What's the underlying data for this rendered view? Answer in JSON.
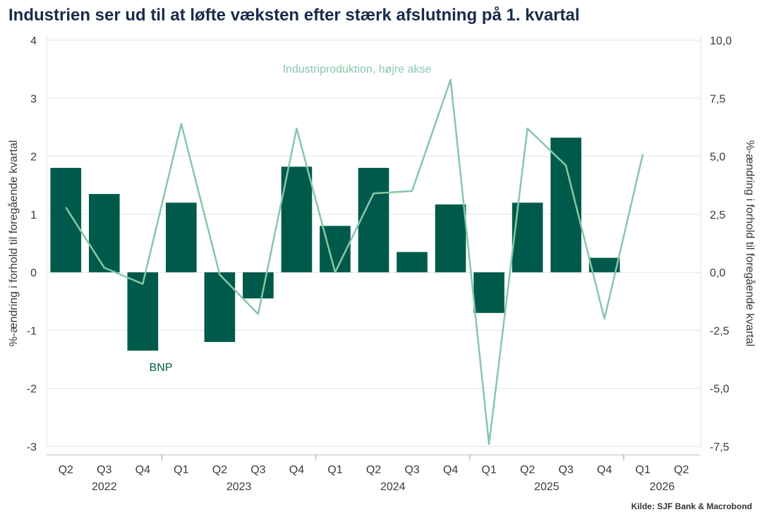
{
  "title": "Industrien ser ud til at løfte væksten efter stærk afslutning på 1. kvartal",
  "source": "Kilde: SJF Bank & Macrobond",
  "colors": {
    "bar": "#005a4b",
    "line": "#86c7a8",
    "grid": "#e3e3e3",
    "title": "#1b2a4a"
  },
  "chart_data": {
    "type": "bar",
    "title": "Industrien ser ud til at løfte væksten efter stærk afslutning på 1. kvartal",
    "categories": [
      "Q2",
      "Q3",
      "Q4",
      "Q1",
      "Q2",
      "Q3",
      "Q4",
      "Q1",
      "Q2",
      "Q3",
      "Q4",
      "Q1",
      "Q2",
      "Q3",
      "Q4",
      "Q1",
      "Q2"
    ],
    "years": [
      {
        "label": "2022",
        "from": 0,
        "to": 2
      },
      {
        "label": "2023",
        "from": 3,
        "to": 6
      },
      {
        "label": "2024",
        "from": 7,
        "to": 10
      },
      {
        "label": "2025",
        "from": 11,
        "to": 14
      },
      {
        "label": "2026",
        "from": 15,
        "to": 16
      }
    ],
    "ylabel_left": "%-ændring i forhold til foregående kvartal",
    "ylabel_right": "%-ændring i forhold til foregående kvartal",
    "ylim_left": [
      -3,
      4
    ],
    "ylim_right": [
      -7.5,
      10
    ],
    "yticks_left": [
      "4",
      "3",
      "2",
      "1",
      "0",
      "-1",
      "-2",
      "-3"
    ],
    "yticks_right": [
      "10,0",
      "7,5",
      "5,0",
      "2,5",
      "0,0",
      "-2,5",
      "-5,0",
      "-7,5"
    ],
    "grid": true,
    "series": [
      {
        "name": "BNP",
        "type": "bar",
        "axis": "left",
        "values": [
          1.8,
          1.35,
          -1.35,
          1.2,
          -1.2,
          -0.45,
          1.82,
          0.8,
          1.8,
          0.35,
          1.17,
          -0.7,
          1.2,
          2.32,
          0.25,
          null,
          null
        ]
      },
      {
        "name": "Industriproduktion, højre akse",
        "type": "line",
        "axis": "right",
        "values": [
          2.8,
          0.2,
          -0.5,
          6.4,
          -0.1,
          -1.8,
          6.2,
          0.0,
          3.4,
          3.5,
          8.3,
          -7.4,
          6.2,
          4.6,
          -2.0,
          5.1,
          null
        ]
      }
    ]
  }
}
